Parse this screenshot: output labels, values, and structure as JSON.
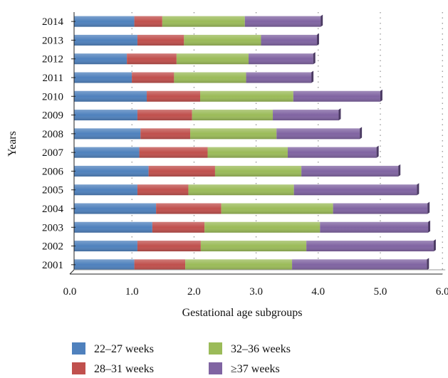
{
  "chart_data": {
    "type": "bar",
    "orientation": "horizontal",
    "stacked": true,
    "title": "",
    "xlabel": "Gestational age subgroups",
    "ylabel": "Years",
    "xlim": [
      0,
      6
    ],
    "xticks": [
      "0.0",
      "1.0",
      "2.0",
      "3.0",
      "4.0",
      "5.0",
      "6.0"
    ],
    "grid": "vertical dotted",
    "legend_position": "bottom",
    "categories": [
      "2014",
      "2013",
      "2012",
      "2011",
      "2010",
      "2009",
      "2008",
      "2007",
      "2006",
      "2005",
      "2004",
      "2003",
      "2002",
      "2001"
    ],
    "series": [
      {
        "name": "22–27 weeks",
        "color": "#4f81bd",
        "values": [
          0.97,
          1.02,
          0.85,
          0.93,
          1.17,
          1.02,
          1.07,
          1.05,
          1.2,
          1.02,
          1.32,
          1.26,
          1.02,
          0.97
        ]
      },
      {
        "name": "28–31 weeks",
        "color": "#c0504d",
        "values": [
          0.45,
          0.75,
          0.8,
          0.68,
          0.86,
          0.88,
          0.8,
          1.1,
          1.07,
          0.82,
          1.05,
          0.84,
          1.02,
          0.82
        ]
      },
      {
        "name": "32–36 weeks",
        "color": "#9bbb59",
        "values": [
          1.33,
          1.24,
          1.16,
          1.16,
          1.5,
          1.3,
          1.39,
          1.29,
          1.39,
          1.7,
          1.8,
          1.86,
          1.7,
          1.72
        ]
      },
      {
        "name": "≥37 weeks",
        "color": "#8064a2",
        "values": [
          1.22,
          0.9,
          1.04,
          1.05,
          1.4,
          1.06,
          1.34,
          1.43,
          1.56,
          1.98,
          1.52,
          1.74,
          2.05,
          2.17
        ]
      }
    ]
  }
}
